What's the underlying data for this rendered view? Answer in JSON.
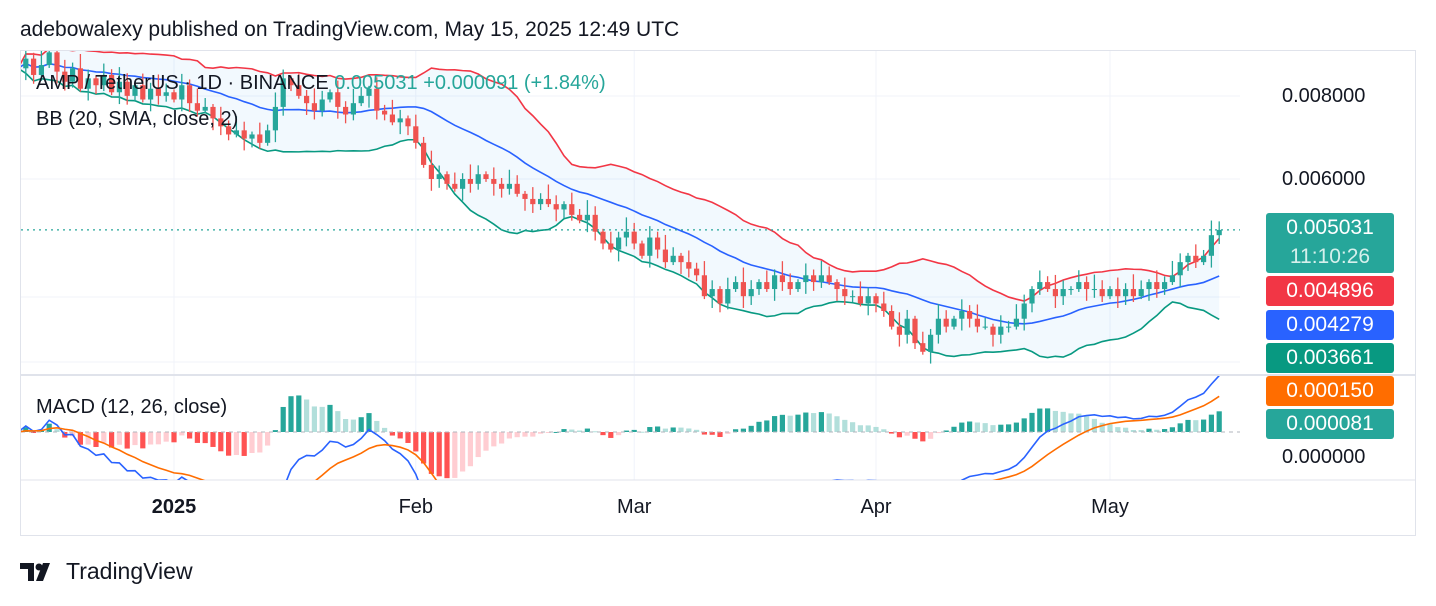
{
  "header": {
    "title": "adebowalexy published on TradingView.com, May 15, 2025 12:49 UTC"
  },
  "legend": {
    "symbol": "AMP / TetherUS · 1D · BINANCE",
    "price": "0.005031",
    "change": "+0.000091 (+1.84%)",
    "indicator": "BB (20, SMA, close, 2)",
    "macd": "MACD (12, 26, close)"
  },
  "price_axis": {
    "labels": [
      "0.008000",
      "0.006000"
    ],
    "macd_zero": "0.000000"
  },
  "tags": {
    "last": "0.005031",
    "countdown": "11:10:26",
    "bb_upper": "0.004896",
    "bb_basis": "0.004279",
    "bb_lower": "0.003661",
    "macd_signal": "0.000150",
    "macd_hist": "0.000081"
  },
  "colors": {
    "up": "#26a69a",
    "down": "#ef5350",
    "bb_upper": "#f23645",
    "bb_basis": "#2962ff",
    "bb_lower": "#089981",
    "macd": "#2962ff",
    "signal": "#ff6d00"
  },
  "footer": {
    "brand": "TradingView"
  },
  "chart_data": {
    "type": "candlestick",
    "title": "AMP / TetherUS · 1D · BINANCE",
    "start_date": "2024-12-12",
    "time_labels": [
      {
        "label": "2025",
        "day": 20,
        "bold": true
      },
      {
        "label": "Feb",
        "day": 51
      },
      {
        "label": "Mar",
        "day": 79
      },
      {
        "label": "Apr",
        "day": 110
      },
      {
        "label": "May",
        "day": 140
      }
    ],
    "y_scale": "log",
    "y_ticks": [
      0.008,
      0.006
    ],
    "closes": [
      0.0088,
      0.0091,
      0.0086,
      0.0089,
      0.0093,
      0.0087,
      0.0084,
      0.0088,
      0.0082,
      0.0085,
      0.0083,
      0.0086,
      0.0081,
      0.0084,
      0.008,
      0.0083,
      0.0079,
      0.0082,
      0.008,
      0.0081,
      0.0079,
      0.0083,
      0.0078,
      0.0076,
      0.0077,
      0.0074,
      0.0072,
      0.007,
      0.0071,
      0.0069,
      0.007,
      0.0068,
      0.0071,
      0.0077,
      0.0085,
      0.0083,
      0.008,
      0.0078,
      0.0076,
      0.0079,
      0.0081,
      0.0077,
      0.0075,
      0.0078,
      0.008,
      0.0082,
      0.0076,
      0.0075,
      0.0073,
      0.0074,
      0.0072,
      0.0068,
      0.0063,
      0.006,
      0.0061,
      0.0059,
      0.0058,
      0.006,
      0.0059,
      0.0061,
      0.006,
      0.0059,
      0.0058,
      0.0059,
      0.0057,
      0.0056,
      0.0055,
      0.0056,
      0.0055,
      0.0054,
      0.0055,
      0.0053,
      0.0052,
      0.0053,
      0.005,
      0.0048,
      0.0047,
      0.0049,
      0.005,
      0.0048,
      0.0046,
      0.0049,
      0.0047,
      0.0045,
      0.0046,
      0.0045,
      0.0044,
      0.0043,
      0.004,
      0.0041,
      0.0039,
      0.0041,
      0.0042,
      0.004,
      0.0041,
      0.0042,
      0.0041,
      0.0043,
      0.0042,
      0.0041,
      0.0042,
      0.0043,
      0.0042,
      0.0043,
      0.0042,
      0.0041,
      0.004,
      0.004,
      0.0039,
      0.004,
      0.0039,
      0.0038,
      0.0036,
      0.0035,
      0.0037,
      0.0034,
      0.0033,
      0.0035,
      0.0037,
      0.0036,
      0.0037,
      0.0038,
      0.0037,
      0.0036,
      0.0036,
      0.0035,
      0.0036,
      0.0036,
      0.0037,
      0.0039,
      0.0041,
      0.0042,
      0.0041,
      0.004,
      0.0041,
      0.0041,
      0.0042,
      0.0041,
      0.0041,
      0.004,
      0.0041,
      0.004,
      0.0041,
      0.004,
      0.0041,
      0.0042,
      0.0041,
      0.0042,
      0.0043,
      0.0045,
      0.0046,
      0.0045,
      0.0046,
      0.00494,
      0.005031
    ],
    "indicators": {
      "bb": {
        "length": 20,
        "mult": 2
      },
      "macd": {
        "fast": 12,
        "slow": 26,
        "signal": 9
      }
    }
  }
}
